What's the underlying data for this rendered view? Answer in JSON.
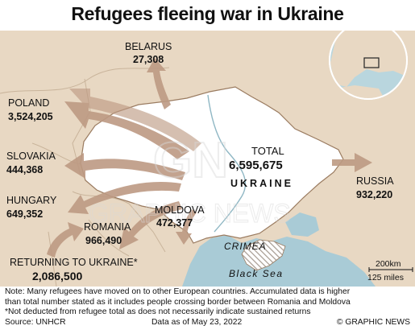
{
  "title": "Refugees fleeing war in Ukraine",
  "countries": {
    "belarus": {
      "name": "BELARUS",
      "value": "27,308"
    },
    "poland": {
      "name": "POLAND",
      "value": "3,524,205"
    },
    "slovakia": {
      "name": "SLOVAKIA",
      "value": "444,368"
    },
    "hungary": {
      "name": "HUNGARY",
      "value": "649,352"
    },
    "romania": {
      "name": "ROMANIA",
      "value": "966,490"
    },
    "moldova": {
      "name": "MOLDOVA",
      "value": "472,377"
    },
    "russia": {
      "name": "RUSSIA",
      "value": "932,220"
    }
  },
  "total": {
    "label": "TOTAL",
    "value": "6,595,675"
  },
  "ukraine_label": "UKRAINE",
  "crimea_label": "CRIMEA",
  "sea_label": "Black Sea",
  "returning": {
    "label": "RETURNING TO UKRAINE*",
    "value": "2,086,500"
  },
  "scale": {
    "km": "200km",
    "miles": "125 miles"
  },
  "watermark": "GRAPHIC NEWS",
  "notes": [
    "Note: Many refugees have moved on to other European countries. Accumulated data is higher",
    "than total number stated as it includes people crossing border between Romania and Moldova",
    "*Not deducted from refugee total as does not necessarily indicate sustained returns"
  ],
  "footer": {
    "source": "Source: UNHCR",
    "date": "Data as of May 23, 2022",
    "credit": "© GRAPHIC NEWS"
  },
  "colors": {
    "land": "#e8d8c3",
    "ukraine": "#ffffff",
    "sea": "#a9cbd6",
    "arrow": "#bd9a83",
    "border": "#9a7b60"
  }
}
